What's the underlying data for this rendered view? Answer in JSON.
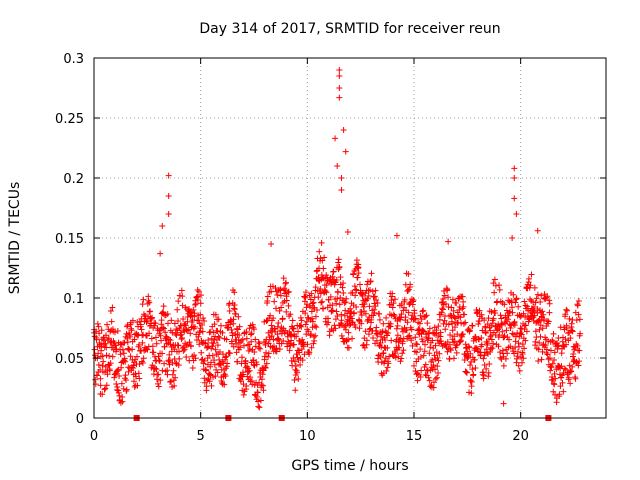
{
  "chart_data": {
    "type": "scatter",
    "title": "Day 314 of 2017, SRMTID for receiver reun",
    "xlabel": "GPS time / hours",
    "ylabel": "SRMTID / TECUs",
    "xlim": [
      0,
      24
    ],
    "ylim": [
      0,
      0.3
    ],
    "x_ticks": [
      "0",
      "5",
      "10",
      "15",
      "20"
    ],
    "y_ticks": [
      "0",
      "0.05",
      "0.1",
      "0.15",
      "0.2",
      "0.25",
      "0.3"
    ],
    "grid": true,
    "marker": "plus",
    "color": "#ff0000",
    "zero_markers_x": [
      2.0,
      6.3,
      8.8,
      21.3
    ],
    "envelope": [
      {
        "hour": 0.0,
        "value": 0.038
      },
      {
        "hour": 1.0,
        "value": 0.052
      },
      {
        "hour": 2.0,
        "value": 0.062
      },
      {
        "hour": 3.0,
        "value": 0.056
      },
      {
        "hour": 3.6,
        "value": 0.075
      },
      {
        "hour": 4.5,
        "value": 0.064
      },
      {
        "hour": 5.5,
        "value": 0.066
      },
      {
        "hour": 6.5,
        "value": 0.06
      },
      {
        "hour": 7.2,
        "value": 0.048
      },
      {
        "hour": 8.0,
        "value": 0.06
      },
      {
        "hour": 8.5,
        "value": 0.078
      },
      {
        "hour": 9.5,
        "value": 0.07
      },
      {
        "hour": 10.5,
        "value": 0.095
      },
      {
        "hour": 11.5,
        "value": 0.105
      },
      {
        "hour": 12.5,
        "value": 0.085
      },
      {
        "hour": 13.5,
        "value": 0.078
      },
      {
        "hour": 14.5,
        "value": 0.075
      },
      {
        "hour": 15.5,
        "value": 0.062
      },
      {
        "hour": 16.5,
        "value": 0.072
      },
      {
        "hour": 17.5,
        "value": 0.068
      },
      {
        "hour": 18.5,
        "value": 0.06
      },
      {
        "hour": 19.5,
        "value": 0.085
      },
      {
        "hour": 20.5,
        "value": 0.078
      },
      {
        "hour": 21.5,
        "value": 0.062
      },
      {
        "hour": 22.8,
        "value": 0.058
      }
    ],
    "spikes": [
      {
        "hour": 3.5,
        "value": 0.202
      },
      {
        "hour": 3.5,
        "value": 0.185
      },
      {
        "hour": 3.5,
        "value": 0.17
      },
      {
        "hour": 3.2,
        "value": 0.16
      },
      {
        "hour": 3.1,
        "value": 0.137
      },
      {
        "hour": 8.3,
        "value": 0.145
      },
      {
        "hour": 11.5,
        "value": 0.29
      },
      {
        "hour": 11.5,
        "value": 0.285
      },
      {
        "hour": 11.5,
        "value": 0.275
      },
      {
        "hour": 11.5,
        "value": 0.267
      },
      {
        "hour": 11.7,
        "value": 0.24
      },
      {
        "hour": 11.3,
        "value": 0.233
      },
      {
        "hour": 11.8,
        "value": 0.222
      },
      {
        "hour": 11.4,
        "value": 0.21
      },
      {
        "hour": 11.6,
        "value": 0.2
      },
      {
        "hour": 11.6,
        "value": 0.19
      },
      {
        "hour": 11.9,
        "value": 0.155
      },
      {
        "hour": 14.2,
        "value": 0.152
      },
      {
        "hour": 16.6,
        "value": 0.147
      },
      {
        "hour": 19.7,
        "value": 0.208
      },
      {
        "hour": 19.7,
        "value": 0.2
      },
      {
        "hour": 19.7,
        "value": 0.183
      },
      {
        "hour": 19.8,
        "value": 0.17
      },
      {
        "hour": 19.6,
        "value": 0.15
      },
      {
        "hour": 20.8,
        "value": 0.156
      },
      {
        "hour": 19.2,
        "value": 0.012
      },
      {
        "hour": 0.3,
        "value": 0.02
      },
      {
        "hour": 22.0,
        "value": 0.022
      }
    ],
    "sample_step_hours": 0.012,
    "noise_amplitude": 0.028
  }
}
